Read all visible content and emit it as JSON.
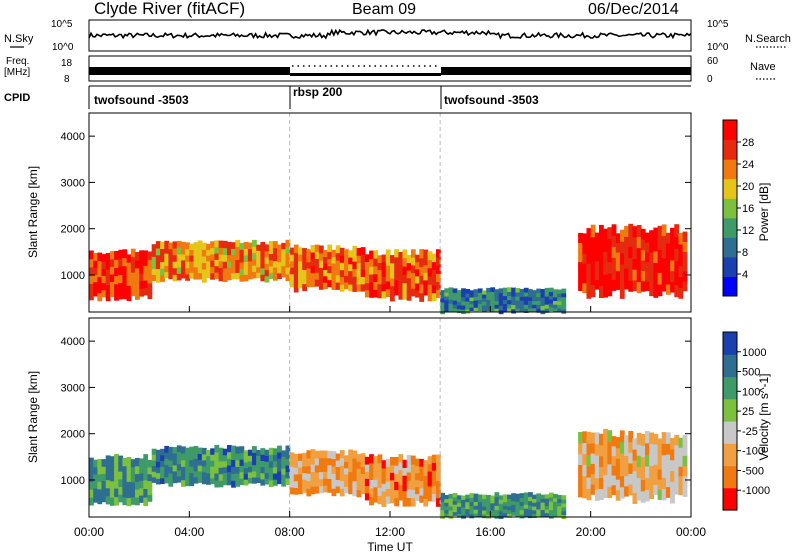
{
  "header": {
    "station": "Clyde River (fitACF)",
    "beam": "Beam 09",
    "date": "06/Dec/2014"
  },
  "strip": {
    "nsky_label": "N.Sky",
    "nsky_ticks": [
      "10^5",
      "10^0"
    ],
    "nsearch_label": "N.Search",
    "nsearch_ticks": [
      "10^5",
      "10^0"
    ],
    "freq_label_1": "Freq.",
    "freq_label_2": "[MHz]",
    "freq_ticks": [
      "18",
      "8"
    ],
    "nave_label": "Nave",
    "nave_ticks": [
      "60",
      "0"
    ],
    "cpid_label": "CPID",
    "cpid_segments": [
      {
        "label": "twofsound -3503",
        "start": "00:00",
        "end": "08:00"
      },
      {
        "label": "rbsp 200",
        "start": "08:00",
        "end": "14:00"
      },
      {
        "label": "twofsound -3503",
        "start": "14:00",
        "end": "24:00"
      }
    ]
  },
  "chart_data": [
    {
      "type": "heatmap",
      "name": "power",
      "ylabel": "Slant Range [km]",
      "yticks": [
        "1000",
        "2000",
        "3000",
        "4000"
      ],
      "ylim": [
        200,
        4500
      ],
      "colorbar_label": "Power [dB]",
      "colorbar_ticks": [
        "4",
        "8",
        "12",
        "16",
        "20",
        "24",
        "28"
      ],
      "colors": [
        "#0000ff",
        "#1a40b0",
        "#2e6e90",
        "#3f9a6a",
        "#7cc040",
        "#e6c41a",
        "#f07a10",
        "#e62a10",
        "#ff0000"
      ],
      "bands": [
        {
          "start": "00:00",
          "end": "02:30",
          "range": [
            500,
            1500
          ],
          "level": 0.85
        },
        {
          "start": "02:30",
          "end": "08:00",
          "range": [
            900,
            1700
          ],
          "level": 0.7
        },
        {
          "start": "08:00",
          "end": "11:00",
          "range": [
            700,
            1600
          ],
          "level": 0.75
        },
        {
          "start": "11:00",
          "end": "14:00",
          "range": [
            500,
            1500
          ],
          "level": 0.8
        },
        {
          "start": "14:00",
          "end": "19:00",
          "range": [
            200,
            700
          ],
          "level": 0.3
        },
        {
          "start": "19:30",
          "end": "23:50",
          "range": [
            600,
            2000
          ],
          "level": 0.9
        }
      ]
    },
    {
      "type": "heatmap",
      "name": "velocity",
      "ylabel": "Slant Range [km]",
      "yticks": [
        "1000",
        "2000",
        "3000",
        "4000"
      ],
      "ylim": [
        200,
        4500
      ],
      "colorbar_label": "Velocity [m s^-1]",
      "colorbar_ticks": [
        "1000",
        "500",
        "100",
        "25",
        "-25",
        "-100",
        "-500",
        "-1000"
      ],
      "colors": [
        "#1a40b0",
        "#2e6e90",
        "#3f9a6a",
        "#7cc040",
        "#c8c8c8",
        "#f0a040",
        "#f07a10",
        "#ff0000"
      ],
      "bands": [
        {
          "start": "00:00",
          "end": "02:30",
          "range": [
            500,
            1500
          ],
          "level": 0.3
        },
        {
          "start": "02:30",
          "end": "08:00",
          "range": [
            900,
            1700
          ],
          "level": 0.25
        },
        {
          "start": "08:00",
          "end": "11:00",
          "range": [
            700,
            1600
          ],
          "level": 0.7
        },
        {
          "start": "11:00",
          "end": "14:00",
          "range": [
            500,
            1500
          ],
          "level": 0.75
        },
        {
          "start": "14:00",
          "end": "19:00",
          "range": [
            200,
            700
          ],
          "level": 0.3
        },
        {
          "start": "19:30",
          "end": "23:50",
          "range": [
            600,
            2000
          ],
          "level": 0.65
        }
      ]
    }
  ],
  "x_axis": {
    "label": "Time UT",
    "ticks": [
      "00:00",
      "04:00",
      "08:00",
      "12:00",
      "16:00",
      "20:00",
      "00:00"
    ]
  }
}
